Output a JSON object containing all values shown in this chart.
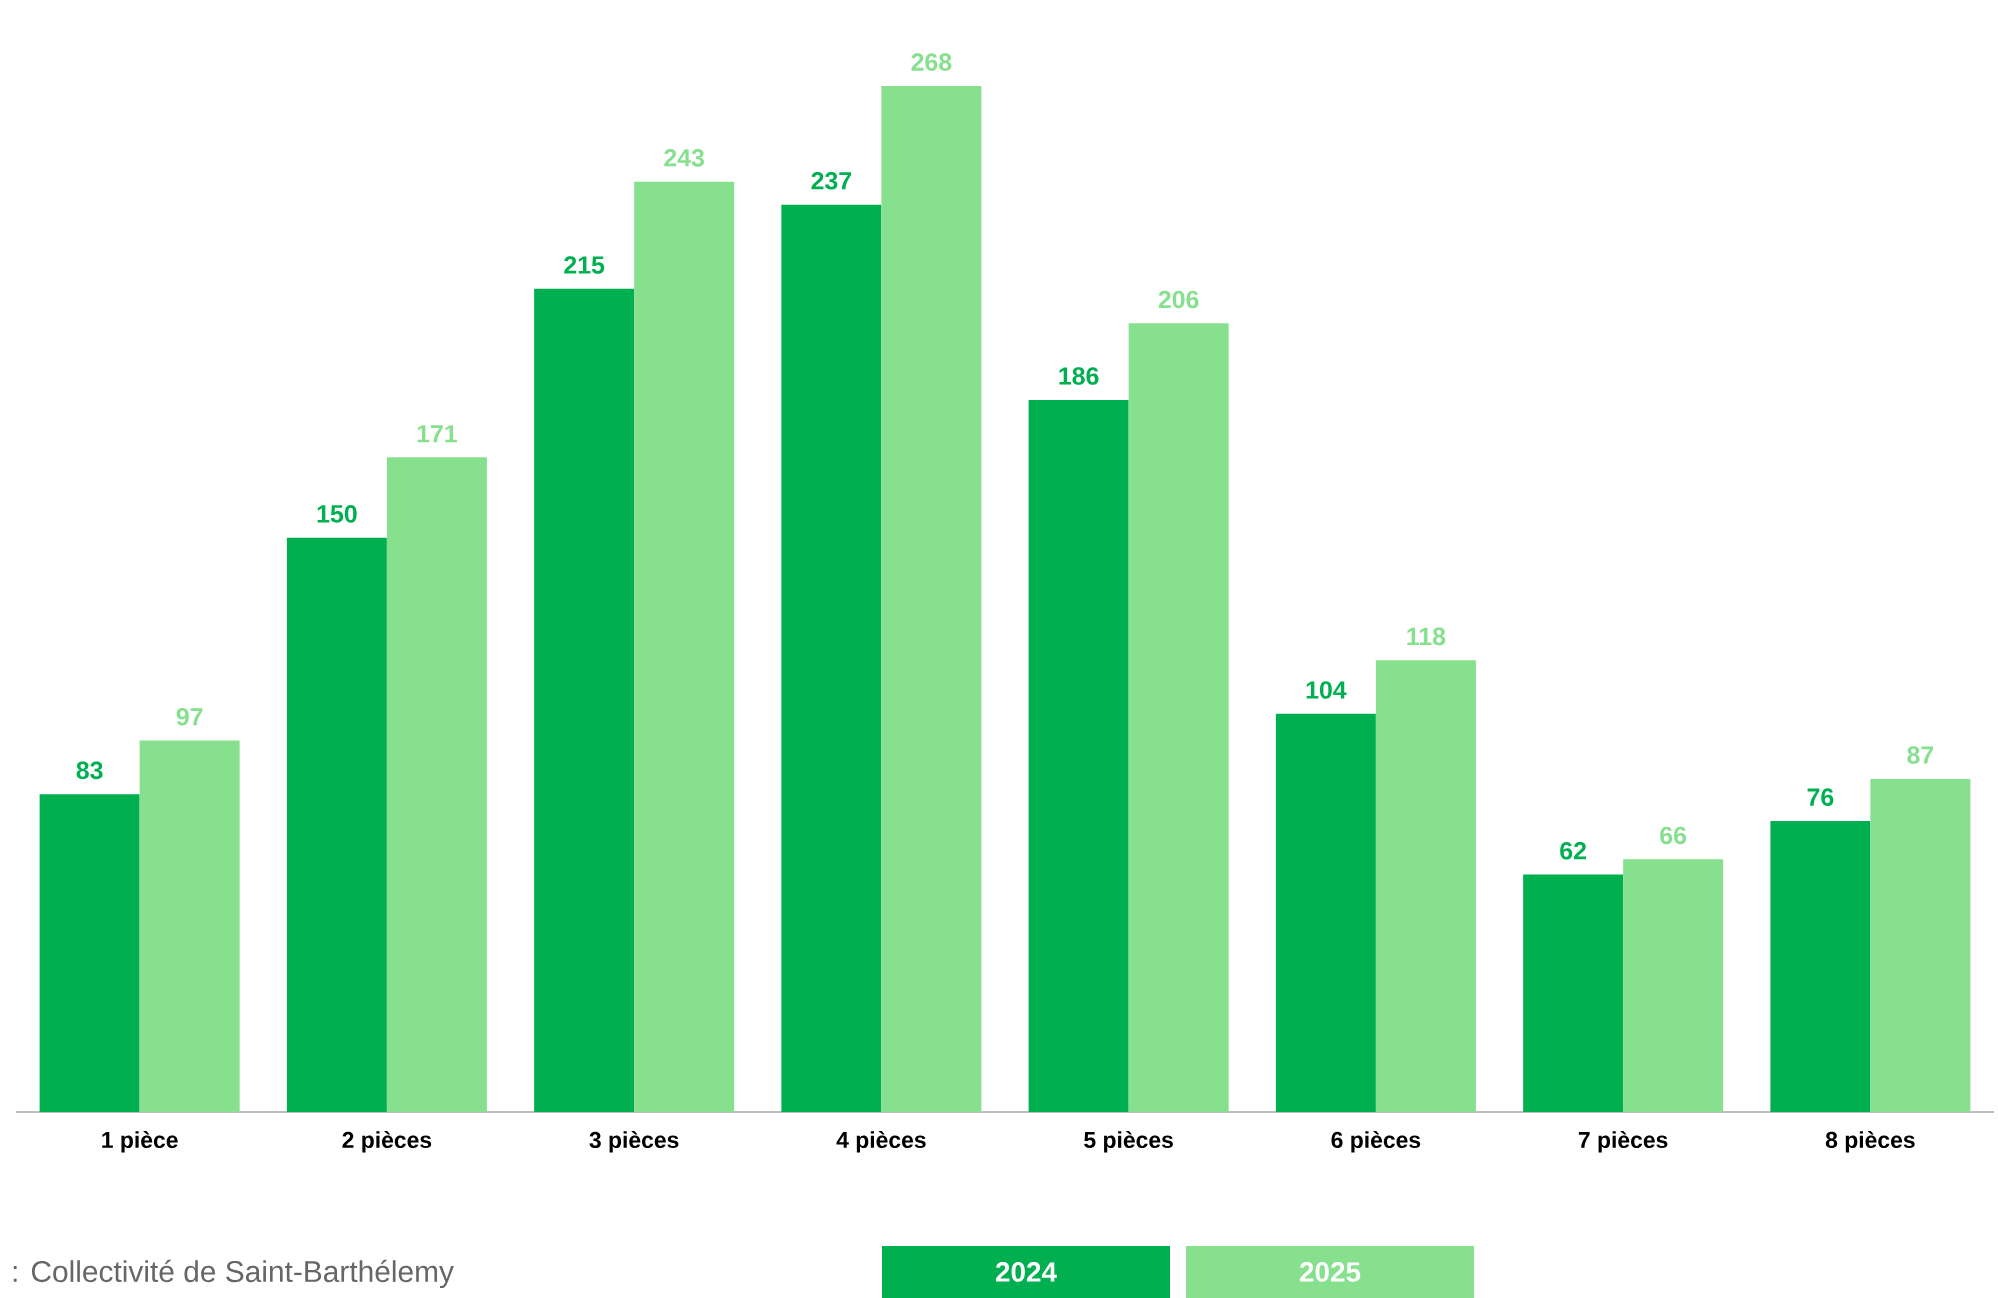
{
  "chart_data": {
    "type": "bar",
    "categories": [
      "1 pièce",
      "2 pièces",
      "3 pièces",
      "4 pièces",
      "5 pièces",
      "6 pièces",
      "7 pièces",
      "8 pièces"
    ],
    "series": [
      {
        "name": "2024",
        "color": "#00b050",
        "values": [
          83,
          150,
          215,
          237,
          186,
          104,
          62,
          76
        ]
      },
      {
        "name": "2025",
        "color": "#86e08e",
        "values": [
          97,
          171,
          243,
          268,
          206,
          118,
          66,
          87
        ]
      }
    ],
    "data_labels": true,
    "legend": "bottom",
    "annotations": [
      ": Collectivité de Saint-Barthélemy"
    ]
  }
}
